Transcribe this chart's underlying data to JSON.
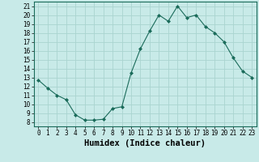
{
  "x": [
    0,
    1,
    2,
    3,
    4,
    5,
    6,
    7,
    8,
    9,
    10,
    11,
    12,
    13,
    14,
    15,
    16,
    17,
    18,
    19,
    20,
    21,
    22,
    23
  ],
  "y": [
    12.7,
    11.8,
    11.0,
    10.5,
    8.8,
    8.2,
    8.2,
    8.3,
    9.5,
    9.7,
    13.5,
    16.2,
    18.2,
    20.0,
    19.3,
    21.0,
    19.7,
    20.0,
    18.7,
    18.0,
    17.0,
    15.2,
    13.7,
    13.0
  ],
  "xlabel": "Humidex (Indice chaleur)",
  "ylim": [
    7.5,
    21.5
  ],
  "xlim": [
    -0.5,
    23.5
  ],
  "yticks": [
    8,
    9,
    10,
    11,
    12,
    13,
    14,
    15,
    16,
    17,
    18,
    19,
    20,
    21
  ],
  "xticks": [
    0,
    1,
    2,
    3,
    4,
    5,
    6,
    7,
    8,
    9,
    10,
    11,
    12,
    13,
    14,
    15,
    16,
    17,
    18,
    19,
    20,
    21,
    22,
    23
  ],
  "line_color": "#1a6b5a",
  "marker_color": "#1a6b5a",
  "bg_color": "#c8eae8",
  "grid_color": "#aad4d0",
  "tick_fontsize": 5.5,
  "xlabel_fontsize": 7.5
}
